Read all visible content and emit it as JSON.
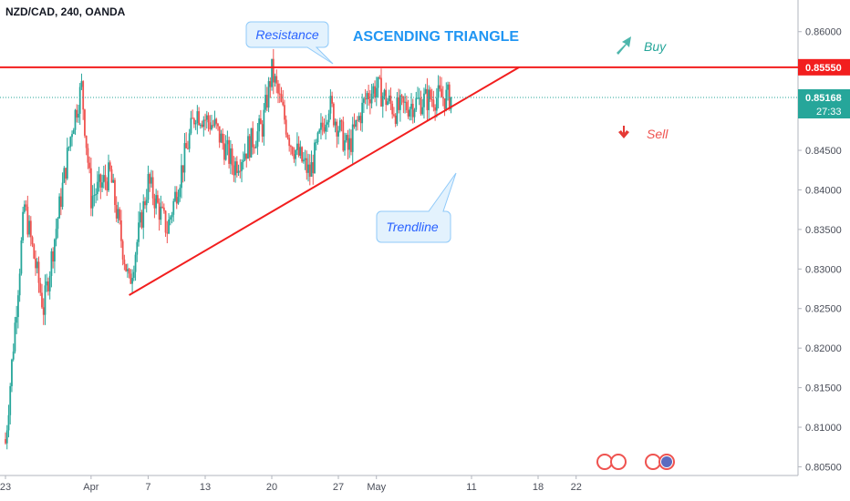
{
  "header": {
    "symbol": "NZD/CAD, 240, OANDA"
  },
  "chart_data": {
    "type": "candlestick",
    "title": "ASCENDING TRIANGLE",
    "instrument": "NZD/CAD",
    "timeframe": "240",
    "source": "OANDA",
    "y_ticks": [
      "0.86000",
      "0.85500",
      "0.85000",
      "0.84500",
      "0.84000",
      "0.83500",
      "0.83000",
      "0.82500",
      "0.82000",
      "0.81500",
      "0.81000",
      "0.80500"
    ],
    "x_ticks": [
      "23",
      "Apr",
      "7",
      "13",
      "20",
      "27",
      "May",
      "11",
      "18",
      "22"
    ],
    "ylim": [
      0.8039,
      0.864
    ],
    "resistance": {
      "label": "Resistance",
      "price": 0.8555
    },
    "trendline": {
      "label": "Trendline",
      "start": {
        "x": "Apr 5",
        "price": 0.8267
      },
      "end": {
        "x": "May 16",
        "price": 0.8555
      }
    },
    "last_price": {
      "value": "0.85168",
      "countdown": "27:33"
    },
    "resistance_label": "0.85550",
    "annotations": {
      "buy": "Buy",
      "sell": "Sell"
    },
    "colors": {
      "up": "#26a69a",
      "down": "#ef5350",
      "resistance": "#f21e1e",
      "title": "#2196f3"
    },
    "candles_approx": [
      {
        "t": "Mar 23",
        "close": 0.808
      },
      {
        "t": "Mar 25",
        "close": 0.838
      },
      {
        "t": "Mar 27",
        "close": 0.825
      },
      {
        "t": "Mar 30",
        "close": 0.848
      },
      {
        "t": "Mar 31",
        "close": 0.853
      },
      {
        "t": "Apr 1",
        "close": 0.839
      },
      {
        "t": "Apr 3",
        "close": 0.842
      },
      {
        "t": "Apr 5",
        "close": 0.828
      },
      {
        "t": "Apr 7",
        "close": 0.841
      },
      {
        "t": "Apr 9",
        "close": 0.835
      },
      {
        "t": "Apr 12",
        "close": 0.85
      },
      {
        "t": "Apr 14",
        "close": 0.848
      },
      {
        "t": "Apr 16",
        "close": 0.843
      },
      {
        "t": "Apr 19",
        "close": 0.848
      },
      {
        "t": "Apr 20",
        "close": 0.855
      },
      {
        "t": "Apr 22",
        "close": 0.846
      },
      {
        "t": "Apr 24",
        "close": 0.842
      },
      {
        "t": "Apr 26",
        "close": 0.851
      },
      {
        "t": "Apr 28",
        "close": 0.845
      },
      {
        "t": "Apr 30",
        "close": 0.852
      },
      {
        "t": "May 1",
        "close": 0.853
      },
      {
        "t": "May 3",
        "close": 0.85
      },
      {
        "t": "May 5",
        "close": 0.851
      },
      {
        "t": "May 7",
        "close": 0.8517
      }
    ]
  }
}
